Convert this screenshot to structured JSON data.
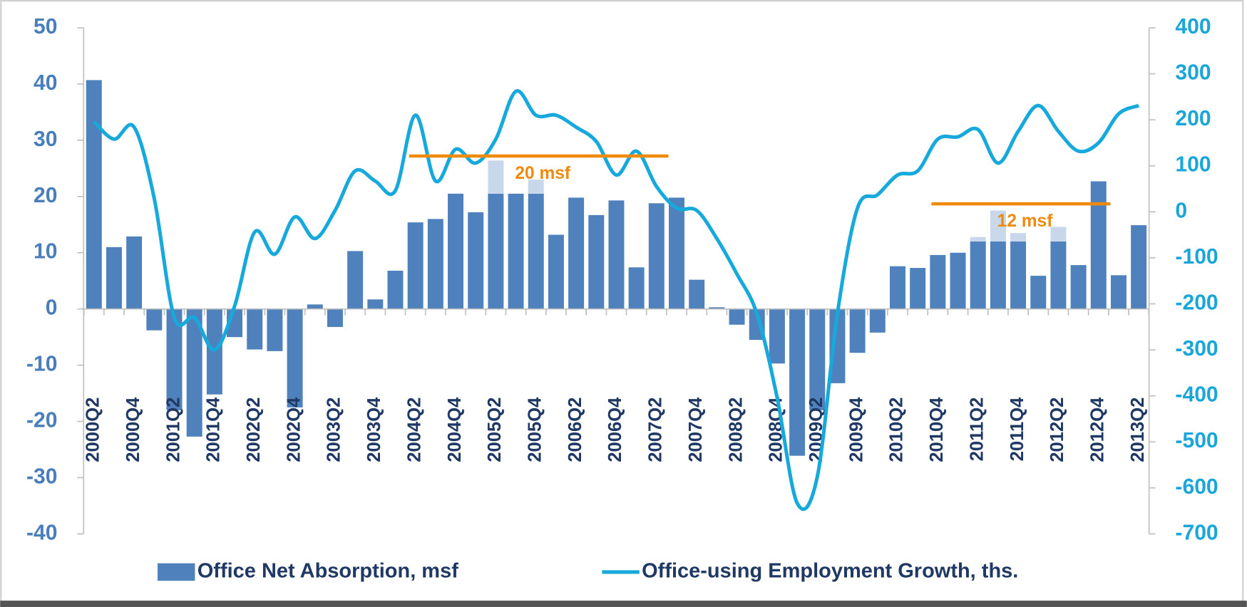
{
  "chart_data": {
    "type": "combo",
    "categories": [
      "2000Q2",
      null,
      "2000Q4",
      null,
      "2001Q2",
      null,
      "2001Q4",
      null,
      "2002Q2",
      null,
      "2002Q4",
      null,
      "2003Q2",
      null,
      "2003Q4",
      null,
      "2004Q2",
      null,
      "2004Q4",
      null,
      "2005Q2",
      null,
      "2005Q4",
      null,
      "2006Q2",
      null,
      "2006Q4",
      null,
      "2007Q2",
      null,
      "2007Q4",
      null,
      "2008Q2",
      null,
      "2008Q4",
      null,
      "2009Q2",
      null,
      "2009Q4",
      null,
      "2010Q2",
      null,
      "2010Q4",
      null,
      "2011Q2",
      null,
      "2011Q4",
      null,
      "2012Q2",
      null,
      "2012Q4",
      null,
      "2013Q2"
    ],
    "series": [
      {
        "name": "Office Net Absorption, msf",
        "type": "bar",
        "color": "#4f81bd",
        "values": [
          40.7,
          11,
          12.9,
          -3.8,
          -18,
          -22.7,
          -15.2,
          -5,
          -7.2,
          -7.5,
          -17.5,
          0.8,
          -3.2,
          10.3,
          1.7,
          6.8,
          15.4,
          16,
          20.5,
          17.2,
          20.5,
          20.5,
          20.5,
          13.2,
          19.8,
          16.7,
          19.3,
          7.4,
          18.8,
          19.8,
          5.2,
          0.3,
          -2.8,
          -5.5,
          -9.7,
          -26.1,
          -18,
          -13.2,
          -7.8,
          -4.2,
          7.6,
          7.3,
          9.6,
          10,
          12,
          12,
          12,
          5.9,
          12,
          7.8,
          22.7,
          6,
          14.9
        ],
        "overlay_color": "#c9d7ea",
        "overlay_values": [
          null,
          null,
          null,
          null,
          null,
          null,
          null,
          null,
          null,
          null,
          null,
          null,
          null,
          null,
          null,
          null,
          null,
          null,
          null,
          null,
          5.9,
          null,
          2.5,
          null,
          null,
          null,
          null,
          null,
          null,
          null,
          null,
          null,
          null,
          null,
          null,
          null,
          null,
          null,
          null,
          null,
          null,
          null,
          null,
          null,
          0.8,
          5.5,
          1.5,
          null,
          2.6,
          null,
          null,
          null,
          null
        ]
      },
      {
        "name": "Office-using Employment Growth, ths.",
        "type": "line",
        "axis": "y2",
        "color": "#17a9db",
        "values": [
          196,
          158,
          184,
          29,
          -230,
          -230,
          -300,
          -205,
          -44,
          -92,
          -11,
          -58,
          3,
          89,
          67,
          46,
          210,
          67,
          136,
          106,
          158,
          262,
          210,
          210,
          184,
          153,
          80,
          132,
          55,
          8,
          3,
          -58,
          -135,
          -222,
          -403,
          -633,
          -576,
          -222,
          8,
          37,
          80,
          89,
          158,
          163,
          179,
          106,
          175,
          231,
          175,
          132,
          150,
          213,
          231
        ]
      }
    ],
    "ylim": [
      -40,
      50
    ],
    "yticks": [
      50,
      40,
      30,
      20,
      10,
      0,
      -10,
      -20,
      -30,
      -40
    ],
    "y2lim": [
      -700,
      400
    ],
    "y2ticks": [
      400,
      300,
      200,
      100,
      0,
      -100,
      -200,
      -300,
      -400,
      -500,
      -600,
      -700
    ],
    "annotations": [
      {
        "label": "20 msf",
        "y": 27.2,
        "from": "2004Q2",
        "to": "2007Q2",
        "color": "#f08a0c"
      },
      {
        "label": "12 msf",
        "y": 18.7,
        "from": "2010Q4",
        "to": "2012Q4",
        "color": "#f08a0c"
      }
    ],
    "legend": "bottom"
  }
}
